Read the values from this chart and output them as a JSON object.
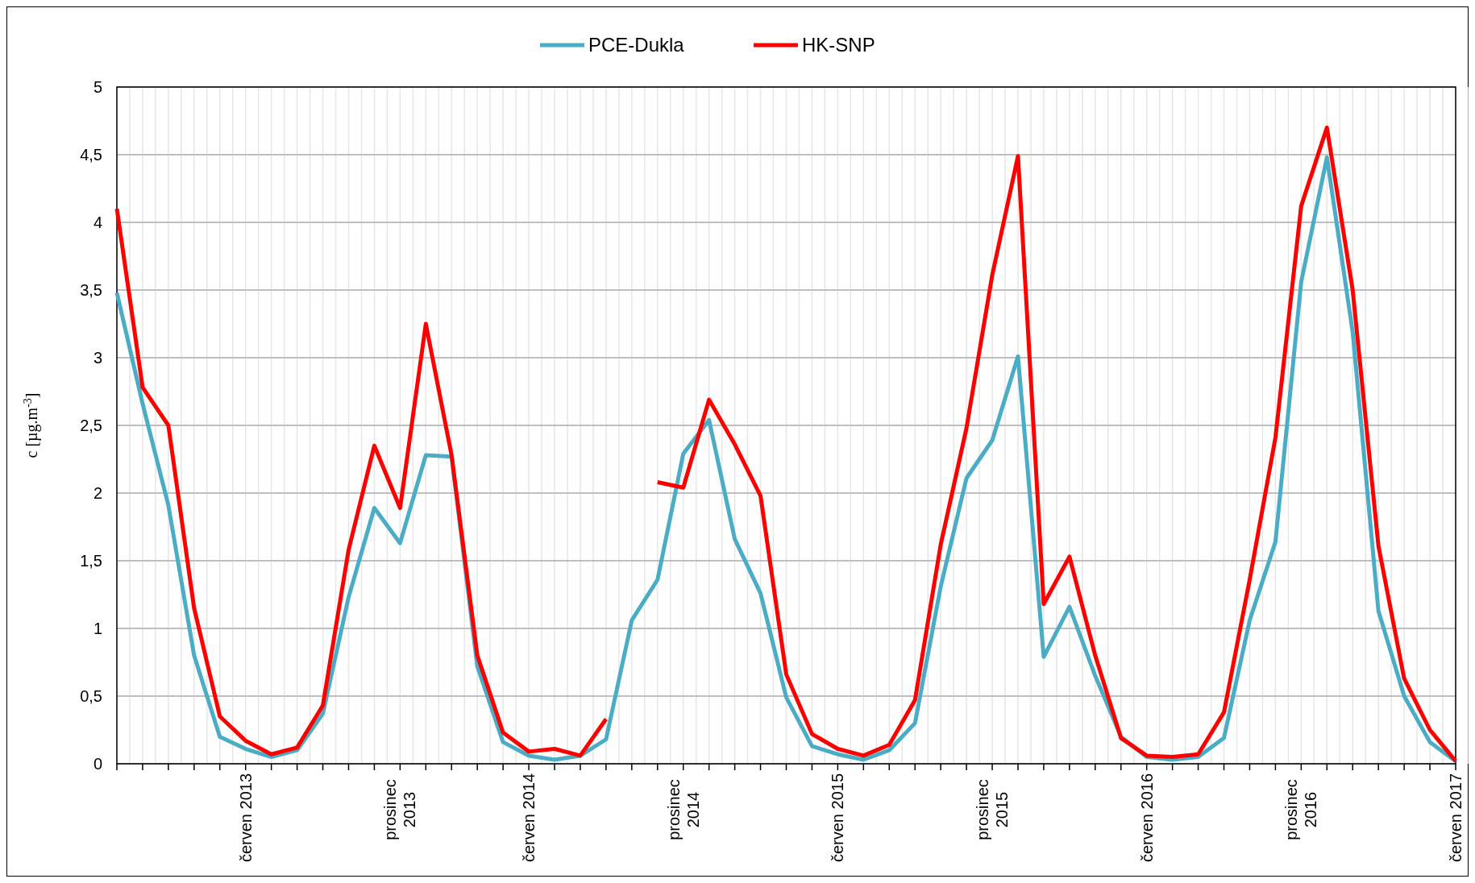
{
  "chart_data": {
    "type": "line",
    "ylabel": "c [µg.m$^{-3}$]",
    "categories": [
      null,
      null,
      null,
      null,
      null,
      "červen 2013",
      null,
      null,
      null,
      null,
      null,
      "prosinec 2013",
      null,
      null,
      null,
      null,
      "červen 2014",
      null,
      null,
      null,
      null,
      null,
      "prosinec 2014",
      null,
      null,
      null,
      null,
      null,
      "červen 2015",
      null,
      null,
      null,
      null,
      null,
      "prosinec 2015",
      null,
      null,
      null,
      null,
      null,
      "červen 2016",
      null,
      null,
      null,
      null,
      null,
      "prosinec 2016",
      null,
      null,
      null,
      null,
      null,
      "červen 2017"
    ],
    "series": [
      {
        "name": "PCE-Dukla",
        "color": "#4bacc6",
        "values": [
          3.48,
          2.66,
          1.91,
          0.8,
          0.2,
          0.11,
          0.05,
          0.1,
          0.37,
          1.23,
          1.89,
          1.63,
          2.28,
          2.27,
          0.72,
          0.16,
          0.06,
          0.03,
          0.06,
          0.18,
          1.06,
          1.36,
          2.29,
          2.54,
          1.66,
          1.26,
          0.49,
          0.13,
          0.07,
          0.03,
          0.1,
          0.3,
          1.31,
          2.11,
          2.39,
          3.01,
          0.79,
          1.16,
          0.65,
          0.2,
          0.05,
          0.03,
          0.05,
          0.19,
          1.06,
          1.64,
          3.56,
          4.48,
          3.19,
          1.13,
          0.5,
          0.16,
          0.02
        ]
      },
      {
        "name": "HK-SNP",
        "color": "#ff0000",
        "values": [
          4.1,
          2.78,
          2.5,
          1.15,
          0.35,
          0.17,
          0.07,
          0.12,
          0.43,
          1.58,
          2.35,
          1.89,
          3.25,
          2.28,
          0.8,
          0.23,
          0.09,
          0.11,
          0.06,
          0.33,
          null,
          2.08,
          2.04,
          2.69,
          2.36,
          1.98,
          0.66,
          0.22,
          0.11,
          0.06,
          0.14,
          0.47,
          1.62,
          2.48,
          3.61,
          4.49,
          1.18,
          1.53,
          0.8,
          0.19,
          0.06,
          0.05,
          0.07,
          0.38,
          1.36,
          2.41,
          4.12,
          4.7,
          3.5,
          1.61,
          0.63,
          0.25,
          0.02
        ]
      }
    ],
    "ylim": [
      0,
      5
    ],
    "yticks": [
      0,
      {
        "value": 0.5,
        "label": "0,5"
      },
      1,
      {
        "value": 1.5,
        "label": "1,5"
      },
      2,
      {
        "value": 2.5,
        "label": "2,5"
      },
      3,
      {
        "value": 3.5,
        "label": "3,5"
      },
      4,
      {
        "value": 4.5,
        "label": "4,5"
      },
      5
    ],
    "grid": true,
    "legend": "top",
    "marker": "none",
    "line_style": "solid"
  }
}
